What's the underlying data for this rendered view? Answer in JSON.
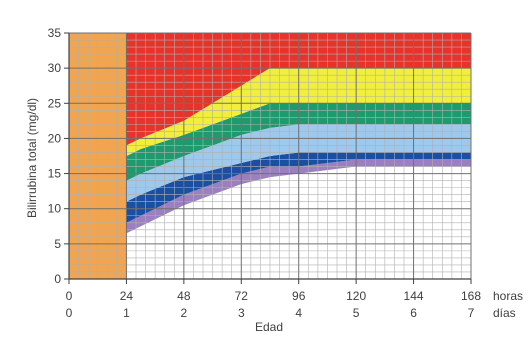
{
  "chart_data": {
    "type": "area",
    "title": "",
    "xlabel": "Edad",
    "ylabel": "Bilirrubina total (mg/dl)",
    "x_unit_hours": "horas",
    "x_unit_days": "días",
    "xlim": [
      0,
      168
    ],
    "ylim": [
      0,
      35
    ],
    "x_ticks_hours": [
      "0",
      "24",
      "48",
      "72",
      "96",
      "120",
      "144",
      "168"
    ],
    "x_ticks_days": [
      "0",
      "1",
      "2",
      "3",
      "4",
      "5",
      "6",
      "7"
    ],
    "y_ticks": [
      "0",
      "5",
      "10",
      "15",
      "20",
      "25",
      "30",
      "35"
    ],
    "grid": true,
    "x_hours": [
      24,
      30,
      48,
      60,
      72,
      84,
      96,
      120,
      144,
      168
    ],
    "boundaries": [
      {
        "color": "#9b7fc0",
        "values": [
          6.5,
          7.5,
          10.5,
          12.0,
          13.5,
          14.5,
          15.0,
          16.0,
          16.0,
          16.0
        ]
      },
      {
        "color": "#1a4fa3",
        "values": [
          8.0,
          9.0,
          12.0,
          13.5,
          15.0,
          16.0,
          16.0,
          17.0,
          17.0,
          17.0
        ]
      },
      {
        "color": "#9ec8ec",
        "values": [
          11.0,
          12.0,
          14.5,
          15.5,
          16.5,
          17.5,
          18.0,
          18.0,
          18.0,
          18.0
        ]
      },
      {
        "color": "#1e9b6e",
        "values": [
          14.0,
          15.0,
          17.5,
          19.0,
          20.5,
          21.5,
          22.0,
          22.0,
          22.0,
          22.0
        ]
      },
      {
        "color": "#f2ef3a",
        "values": [
          17.5,
          18.5,
          20.5,
          22.0,
          23.5,
          25.0,
          25.0,
          25.0,
          25.0,
          25.0
        ]
      },
      {
        "color": "#e8332a",
        "values": [
          19.0,
          20.0,
          22.5,
          25.0,
          27.5,
          30.0,
          30.0,
          30.0,
          30.0,
          30.0
        ]
      }
    ],
    "top_color": "#e8332a",
    "first_day_block": {
      "x_range": [
        0,
        24
      ],
      "color": "#f2a54e"
    },
    "grid_color": "#b0b0b0",
    "grid_color_major": "#707070"
  }
}
